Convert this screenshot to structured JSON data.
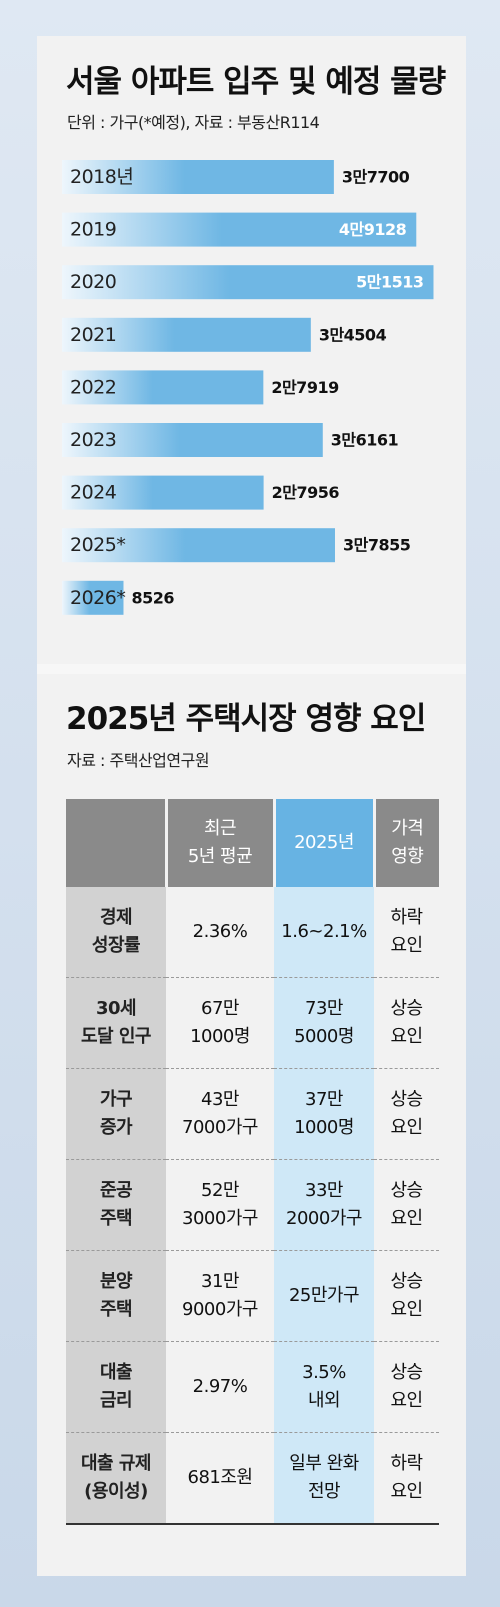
{
  "chart_data": {
    "type": "bar",
    "orientation": "horizontal",
    "title": "서울 아파트 입주 및 예정 물량",
    "subtitle": "단위 : 가구(*예정), 자료 : 부동산R114",
    "categories": [
      "2018년",
      "2019",
      "2020",
      "2021",
      "2022",
      "2023",
      "2024",
      "2025*",
      "2026*"
    ],
    "values": [
      37700,
      49128,
      51513,
      34504,
      27919,
      36161,
      27956,
      37855,
      8526
    ],
    "value_labels": [
      "3만7700",
      "4만9128",
      "5만1513",
      "3만4504",
      "2만7919",
      "3만6161",
      "2만7956",
      "3만7855",
      "8526"
    ],
    "label_inside": [
      false,
      true,
      true,
      false,
      false,
      false,
      false,
      false,
      false
    ],
    "xlim": [
      0,
      52000
    ],
    "grid": false,
    "bar_color": "#6fb7e4",
    "bar_fade_color": "#eef6fc"
  },
  "table": {
    "title": "2025년 주택시장 영향 요인",
    "source": "자료 : 주택산업연구원",
    "headers": [
      [
        ""
      ],
      [
        "최근",
        "5년 평균"
      ],
      [
        "2025년"
      ],
      [
        "가격",
        "영향"
      ]
    ],
    "rows": [
      {
        "label": [
          "경제",
          "성장률"
        ],
        "recent": [
          "2.36%"
        ],
        "y2025": [
          "1.6~2.1%"
        ],
        "effect": [
          "하락",
          "요인"
        ]
      },
      {
        "label": [
          "30세",
          "도달 인구"
        ],
        "recent": [
          "67만",
          "1000명"
        ],
        "y2025": [
          "73만",
          "5000명"
        ],
        "effect": [
          "상승",
          "요인"
        ]
      },
      {
        "label": [
          "가구",
          "증가"
        ],
        "recent": [
          "43만",
          "7000가구"
        ],
        "y2025": [
          "37만",
          "1000명"
        ],
        "effect": [
          "상승",
          "요인"
        ]
      },
      {
        "label": [
          "준공",
          "주택"
        ],
        "recent": [
          "52만",
          "3000가구"
        ],
        "y2025": [
          "33만",
          "2000가구"
        ],
        "effect": [
          "상승",
          "요인"
        ]
      },
      {
        "label": [
          "분양",
          "주택"
        ],
        "recent": [
          "31만",
          "9000가구"
        ],
        "y2025": [
          "25만가구"
        ],
        "effect": [
          "상승",
          "요인"
        ]
      },
      {
        "label": [
          "대출",
          "금리"
        ],
        "recent": [
          "2.97%"
        ],
        "y2025": [
          "3.5%",
          "내외"
        ],
        "effect": [
          "상승",
          "요인"
        ]
      },
      {
        "label": [
          "대출 규제",
          "(용이성)"
        ],
        "recent": [
          "681조원"
        ],
        "y2025": [
          "일부 완화",
          "전망"
        ],
        "effect": [
          "하락",
          "요인"
        ]
      }
    ],
    "colors": {
      "header_gray": "#8a8a8a",
      "header_blue": "#67b3e3",
      "row_label_gray": "#d2d2d2",
      "column_2025_tint": "#cfe8f7"
    }
  }
}
